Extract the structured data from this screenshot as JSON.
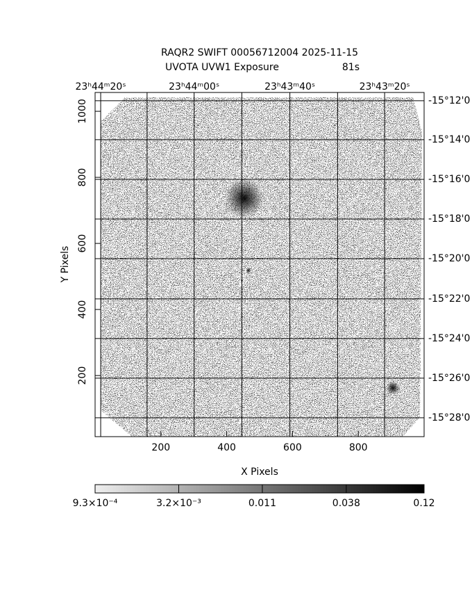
{
  "chart_data": {
    "type": "image",
    "title": "RAQR2 SWIFT 00056712004 2025-11-15",
    "subtitle": "UVOTA UVW1 Exposure",
    "exposure": "81s",
    "x_label": "X Pixels",
    "y_label": "Y Pixels",
    "xlim": [
      0,
      1000
    ],
    "ylim": [
      15,
      1057
    ],
    "xticks": [
      200,
      400,
      600,
      800
    ],
    "yticks": [
      200,
      400,
      600,
      800,
      1000
    ],
    "x2grid": [
      17,
      158,
      301,
      446,
      592,
      737,
      880
    ],
    "x2ticks": [
      {
        "value": 17,
        "label": "23ʰ44ᵐ20ˢ"
      },
      {
        "value": 301,
        "label": "23ʰ44ᵐ00ˢ"
      },
      {
        "value": 592,
        "label": "23ʰ43ᵐ40ˢ"
      },
      {
        "value": 880,
        "label": "23ʰ43ᵐ20ˢ"
      }
    ],
    "y2ticks": [
      {
        "value": 1032,
        "label": "-15°12'0"
      },
      {
        "value": 914,
        "label": "-15°14'0"
      },
      {
        "value": 794,
        "label": "-15°16'0"
      },
      {
        "value": 674,
        "label": "-15°18'0"
      },
      {
        "value": 554,
        "label": "-15°20'0"
      },
      {
        "value": 432,
        "label": "-15°22'0"
      },
      {
        "value": 312,
        "label": "-15°24'0"
      },
      {
        "value": 192,
        "label": "-15°26'0"
      },
      {
        "value": 72,
        "label": "-15°28'0"
      }
    ],
    "colorbar": {
      "log": true,
      "lim": [
        0.00093,
        0.12
      ],
      "ticks": [
        {
          "value": 0.00093,
          "label": "9.3×10⁻⁴"
        },
        {
          "value": 0.0032,
          "label": "3.2×10⁻³"
        },
        {
          "value": 0.011,
          "label": "0.011"
        },
        {
          "value": 0.038,
          "label": "0.038"
        },
        {
          "value": 0.12,
          "label": "0.12"
        }
      ]
    },
    "grid": true
  }
}
